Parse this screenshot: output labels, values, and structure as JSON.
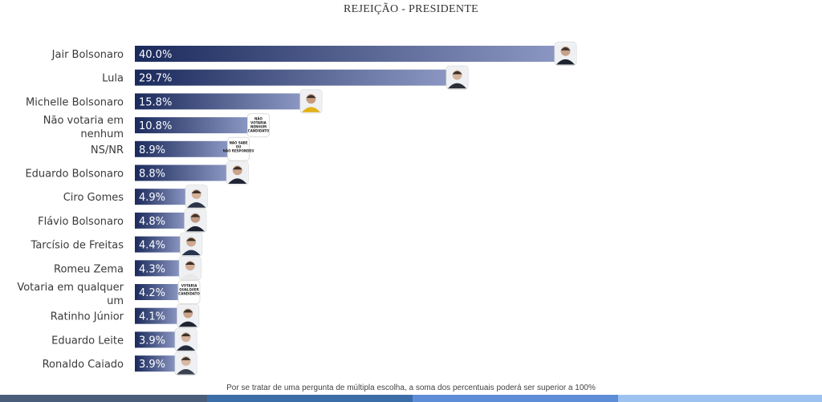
{
  "colors": {
    "bar_dark": "#1b2a5c",
    "bar_light": "#8b97c2",
    "strip": [
      "#4a5d7a",
      "#3b6ea8",
      "#5c8dd6",
      "#9cc3ef"
    ]
  },
  "footnote": "Por se tratar de uma pergunta de múltipla escolha, a soma dos percentuais poderá ser superior a 100%",
  "chart_data": {
    "type": "bar",
    "orientation": "horizontal",
    "title": "REJEIÇÃO - PRESIDENTE",
    "xlim": [
      0,
      42
    ],
    "grid": false,
    "categories": [
      "Jair Bolsonaro",
      "Lula",
      "Michelle Bolsonaro",
      "Não votaria em nenhum",
      "NS/NR",
      "Eduardo Bolsonaro",
      "Ciro Gomes",
      "Flávio Bolsonaro",
      "Tarcísio de Freitas",
      "Romeu Zema",
      "Votaria em qualquer um",
      "Ratinho Júnior",
      "Eduardo Leite",
      "Ronaldo Caiado"
    ],
    "values": [
      40.0,
      29.7,
      15.8,
      10.8,
      8.9,
      8.8,
      4.9,
      4.8,
      4.4,
      4.3,
      4.2,
      4.1,
      3.9,
      3.9
    ],
    "value_labels": [
      "40.0%",
      "29.7%",
      "15.8%",
      "10.8%",
      "8.9%",
      "8.8%",
      "4.9%",
      "4.8%",
      "4.4%",
      "4.3%",
      "4.2%",
      "4.1%",
      "3.9%",
      "3.9%"
    ],
    "label_lines": [
      [
        "Jair Bolsonaro"
      ],
      [
        "Lula"
      ],
      [
        "Michelle Bolsonaro"
      ],
      [
        "Não votaria em",
        "nenhum"
      ],
      [
        "NS/NR"
      ],
      [
        "Eduardo Bolsonaro"
      ],
      [
        "Ciro Gomes"
      ],
      [
        "Flávio Bolsonaro"
      ],
      [
        "Tarcísio de Freitas"
      ],
      [
        "Romeu Zema"
      ],
      [
        "Votaria em qualquer",
        "um"
      ],
      [
        "Ratinho Júnior"
      ],
      [
        "Eduardo Leite"
      ],
      [
        "Ronaldo Caiado"
      ]
    ],
    "badges": [
      {
        "kind": "photo",
        "icon": "person-photo-icon",
        "suit": "#1d2430",
        "skin": "#c9a189"
      },
      {
        "kind": "photo",
        "icon": "person-photo-icon",
        "suit": "#2c2f38",
        "skin": "#d6b39c"
      },
      {
        "kind": "photo",
        "icon": "person-photo-icon",
        "suit": "#e0b21a",
        "skin": "#c79a7e"
      },
      {
        "kind": "text",
        "icon": "text-badge-icon",
        "lines": [
          "NÃO",
          "VOTARIA",
          "NENHUM",
          "CANDIDATO"
        ]
      },
      {
        "kind": "text",
        "icon": "text-badge-icon",
        "lines": [
          "NÃO SABE",
          "OU",
          "NÃO RESPONDEU"
        ]
      },
      {
        "kind": "photo",
        "icon": "person-photo-icon",
        "suit": "#202636",
        "skin": "#caa38a"
      },
      {
        "kind": "photo",
        "icon": "person-photo-icon",
        "suit": "#2b3446",
        "skin": "#d4b09a"
      },
      {
        "kind": "photo",
        "icon": "person-photo-icon",
        "suit": "#1c2230",
        "skin": "#c09a83"
      },
      {
        "kind": "photo",
        "icon": "person-photo-icon",
        "suit": "#27354f",
        "skin": "#cfa98f"
      },
      {
        "kind": "photo",
        "icon": "person-photo-icon",
        "suit": "#e8e8e8",
        "skin": "#d3ae96"
      },
      {
        "kind": "text",
        "icon": "text-badge-icon",
        "lines": [
          "VOTARIA",
          "QUALQUER",
          "CANDIDATO"
        ]
      },
      {
        "kind": "photo",
        "icon": "person-photo-icon",
        "suit": "#1f2433",
        "skin": "#cba48b"
      },
      {
        "kind": "photo",
        "icon": "person-photo-icon",
        "suit": "#232a3a",
        "skin": "#d5b49f"
      },
      {
        "kind": "photo",
        "icon": "person-photo-icon",
        "suit": "#3a4150",
        "skin": "#d8b7a3"
      }
    ]
  }
}
